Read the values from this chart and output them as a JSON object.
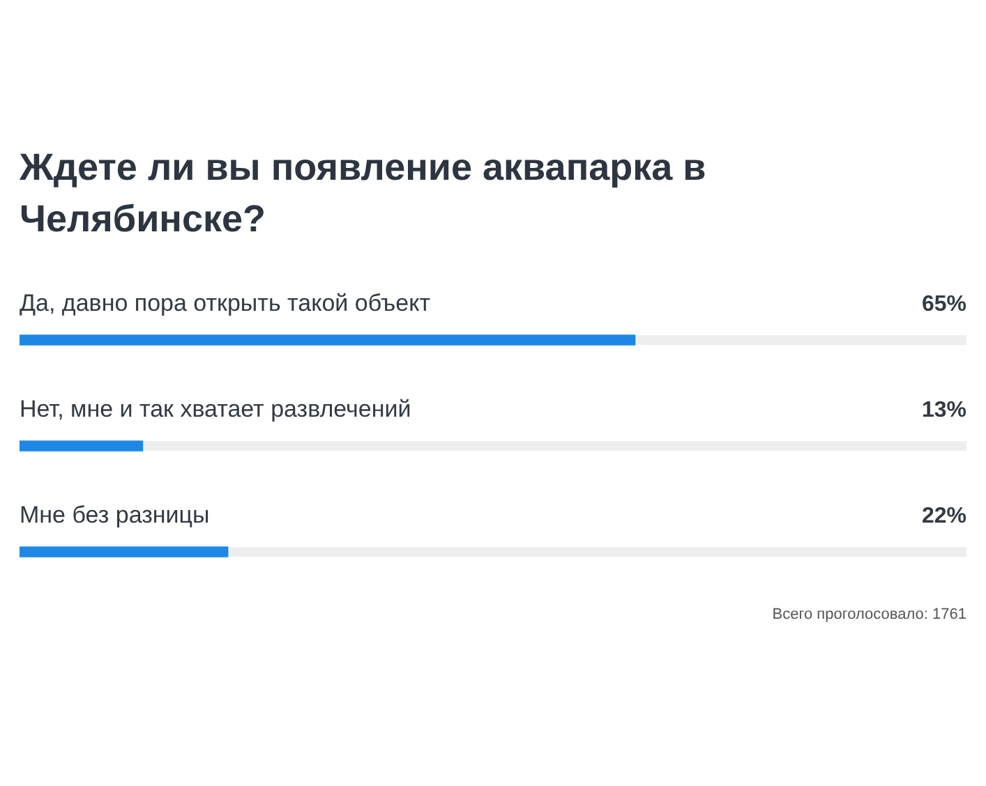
{
  "chart_data": {
    "type": "bar",
    "orientation": "horizontal",
    "title": "Ждете ли вы появление аквапарка в Челябинске?",
    "categories": [
      "Да, давно пора открыть такой объект",
      "Нет, мне и так хватает развлечений",
      "Мне без разницы"
    ],
    "values": [
      65,
      13,
      22
    ],
    "value_labels": [
      "65%",
      "13%",
      "22%"
    ],
    "color": "#1e88e5",
    "xlim": [
      0,
      100
    ],
    "tick_labels": false,
    "annotations": [
      "Всего проголосовало: 1761"
    ]
  }
}
